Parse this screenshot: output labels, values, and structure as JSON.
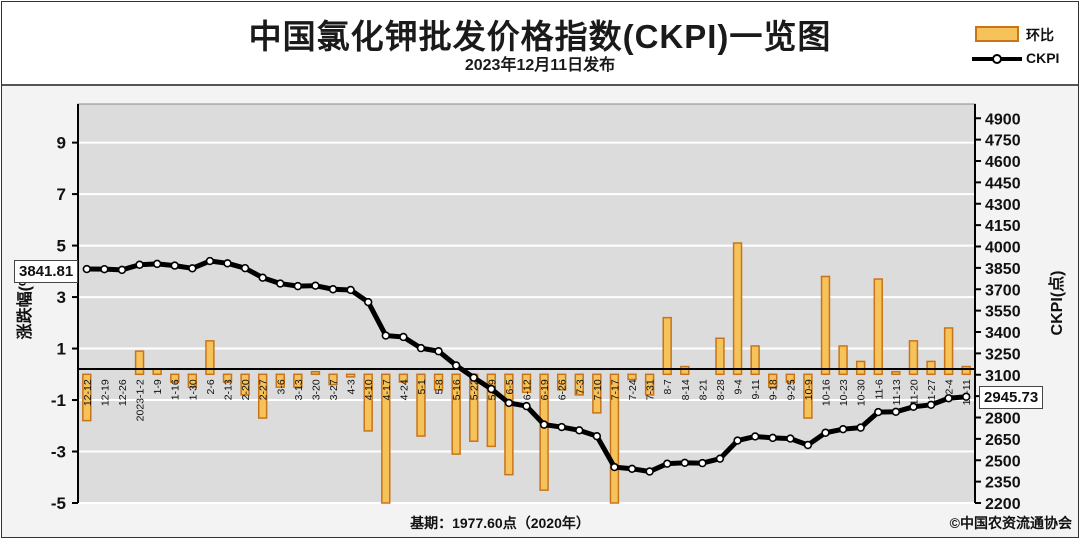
{
  "header": {
    "title": "中国氯化钾批发价格指数(CKPI)一览图",
    "subtitle": "2023年12月11日发布"
  },
  "legend": {
    "bar_label": "环比",
    "line_label": "CKPI"
  },
  "callouts": {
    "start_value": "3841.81",
    "end_value": "2945.73"
  },
  "footer": {
    "base": "基期：1977.60点（2020年）",
    "copyright": "©中国农资流通协会"
  },
  "colors": {
    "bar_fill": "#f6c25a",
    "bar_edge": "#c8741a",
    "line": "#000000",
    "plot_bg": "#dcdcdc"
  },
  "chart_data": {
    "type": "bar+line",
    "left_axis": {
      "label": "涨跌幅(%)",
      "ylim": [
        -5,
        10.5
      ],
      "ticks": [
        -5,
        -3,
        -1,
        1,
        3,
        5,
        7,
        9
      ]
    },
    "right_axis": {
      "label": "CKPI(点)",
      "ylim": [
        2200,
        5000
      ],
      "ticks": [
        2200,
        2350,
        2500,
        2650,
        2800,
        2950,
        3100,
        3250,
        3400,
        3550,
        3700,
        3850,
        4000,
        4150,
        4300,
        4450,
        4600,
        4750,
        4900
      ]
    },
    "categories": [
      "12-12",
      "12-19",
      "12-26",
      "2023-1-2",
      "1-9",
      "1-16",
      "1-30",
      "2-6",
      "2-13",
      "2-20",
      "2-27",
      "3-6",
      "3-13",
      "3-20",
      "3-27",
      "4-3",
      "4-10",
      "4-17",
      "4-24",
      "5-1",
      "5-8",
      "5-16",
      "5-22",
      "5-29",
      "6-5",
      "6-12",
      "6-19",
      "6-26",
      "7-3",
      "7-10",
      "7-17",
      "7-24",
      "7-31",
      "8-7",
      "8-14",
      "8-21",
      "8-28",
      "9-4",
      "9-11",
      "9-18",
      "9-25",
      "10-9",
      "10-16",
      "10-23",
      "10-30",
      "11-6",
      "11-13",
      "11-20",
      "11-27",
      "12-4",
      "12-11"
    ],
    "series": [
      {
        "name": "环比",
        "values": [
          -1.8,
          0.0,
          0.0,
          0.9,
          0.2,
          -0.3,
          -0.5,
          1.3,
          -0.3,
          -0.8,
          -1.7,
          -0.5,
          -0.5,
          0.1,
          -0.4,
          -0.1,
          -2.2,
          -5.0,
          -0.3,
          -2.4,
          -0.6,
          -3.1,
          -2.6,
          -2.8,
          -3.9,
          -0.7,
          -4.5,
          -0.6,
          -0.8,
          -1.5,
          -5.0,
          -0.2,
          -0.8,
          2.2,
          0.3,
          0.0,
          1.4,
          5.1,
          1.1,
          -0.5,
          -0.3,
          -1.7,
          3.8,
          1.1,
          0.5,
          3.7,
          0.1,
          1.3,
          0.5,
          1.8,
          0.3
        ]
      },
      {
        "name": "CKPI",
        "values": [
          3841.81,
          3841,
          3836,
          3872,
          3878,
          3866,
          3847,
          3898,
          3882,
          3848,
          3781,
          3740,
          3722,
          3725,
          3700,
          3695,
          3610,
          3375,
          3365,
          3287,
          3265,
          3165,
          3080,
          3000,
          2902,
          2880,
          2750,
          2733,
          2710,
          2669,
          2452,
          2440,
          2421,
          2476,
          2482,
          2480,
          2511,
          2638,
          2667,
          2657,
          2652,
          2607,
          2693,
          2718,
          2729,
          2838,
          2840,
          2875,
          2889,
          2935,
          2945.73
        ]
      }
    ]
  }
}
